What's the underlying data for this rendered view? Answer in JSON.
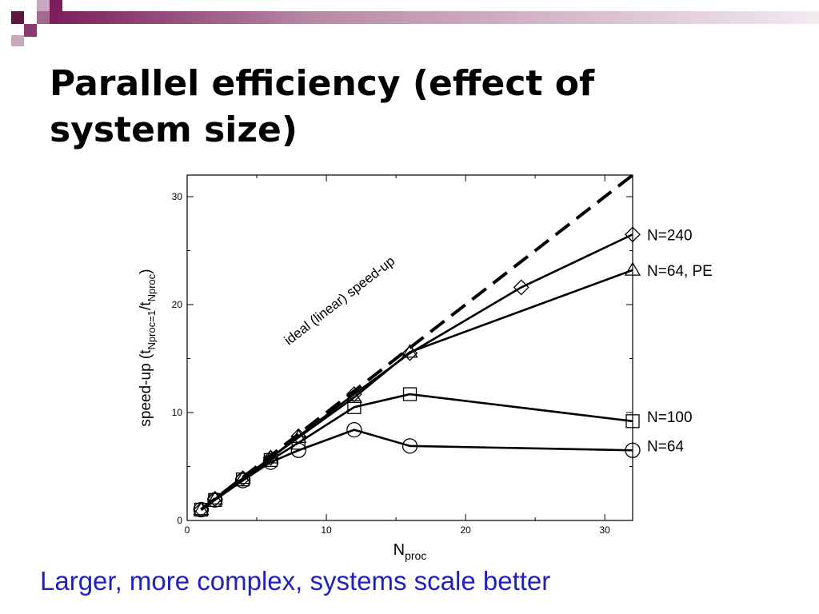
{
  "slide": {
    "title_line1": "Parallel efficiency (effect of",
    "title_line2": "system size)",
    "caption": "Larger, more complex, systems scale better",
    "accent_colors": [
      "#7b1e5a",
      "#b98aa8",
      "#e3d2dd"
    ],
    "caption_color": "#1f1fc8"
  },
  "chart_data": {
    "type": "line",
    "title": "",
    "xlabel": "N",
    "xlabel_sub": "proc",
    "ylabel": "speed-up (t",
    "ylabel_sub1": "Nproc=1",
    "ylabel_mid": "/t",
    "ylabel_sub2": "Nproc",
    "ylabel_end": ")",
    "xlim": [
      0,
      32
    ],
    "ylim": [
      0,
      32
    ],
    "xticks": [
      0,
      10,
      20,
      30
    ],
    "yticks": [
      0,
      10,
      20,
      30
    ],
    "grid": false,
    "ideal": {
      "label": "ideal (linear) speed-up",
      "x": [
        1,
        32
      ],
      "y": [
        1,
        32
      ]
    },
    "series": [
      {
        "name": "N=240",
        "marker": "diamond",
        "x": [
          1,
          2,
          4,
          6,
          8,
          12,
          16,
          24,
          32
        ],
        "y": [
          1,
          2,
          3.9,
          5.8,
          7.8,
          11.7,
          15.5,
          21.6,
          26.5
        ]
      },
      {
        "name": "N=64, PE",
        "marker": "triangle",
        "x": [
          1,
          2,
          4,
          6,
          8,
          12,
          16,
          32
        ],
        "y": [
          1,
          2,
          3.9,
          5.8,
          7.7,
          11.4,
          15.6,
          23.2
        ]
      },
      {
        "name": "N=100",
        "marker": "square",
        "x": [
          1,
          2,
          4,
          6,
          8,
          12,
          16,
          32
        ],
        "y": [
          1,
          1.9,
          3.8,
          5.6,
          7.2,
          10.5,
          11.7,
          9.2
        ]
      },
      {
        "name": "N=64",
        "marker": "circle",
        "x": [
          1,
          2,
          4,
          6,
          8,
          12,
          16,
          32
        ],
        "y": [
          1,
          1.9,
          3.7,
          5.4,
          6.5,
          8.4,
          6.9,
          6.5
        ]
      }
    ]
  }
}
